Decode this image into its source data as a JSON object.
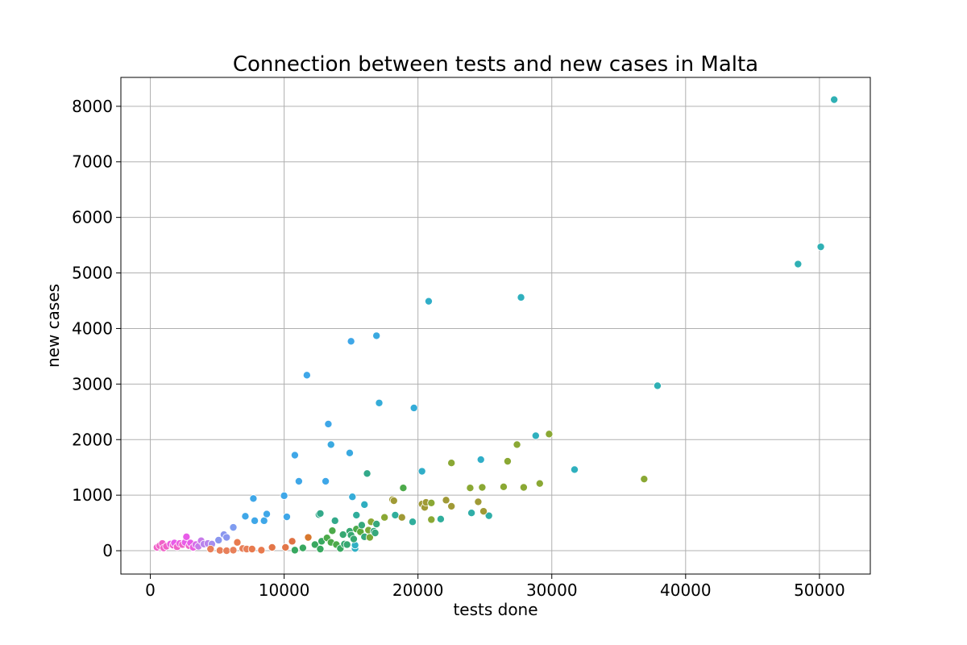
{
  "chart_data": {
    "type": "scatter",
    "title": "Connection between tests and new cases in Malta",
    "xlabel": "tests done",
    "ylabel": "new cases",
    "xlim": [
      -2200,
      53800
    ],
    "ylim": [
      -420,
      8520
    ],
    "xticks": [
      0,
      10000,
      20000,
      30000,
      40000,
      50000
    ],
    "yticks": [
      0,
      1000,
      2000,
      3000,
      4000,
      5000,
      6000,
      7000,
      8000
    ],
    "grid": true,
    "legend": "none",
    "points": [
      {
        "x": 500,
        "y": 60,
        "color": "#f062c8"
      },
      {
        "x": 700,
        "y": 90,
        "color": "#f062c8"
      },
      {
        "x": 900,
        "y": 130,
        "color": "#f062c8"
      },
      {
        "x": 1000,
        "y": 50,
        "color": "#f062c8"
      },
      {
        "x": 1200,
        "y": 80,
        "color": "#f062c8"
      },
      {
        "x": 1500,
        "y": 120,
        "color": "#ec5fe0"
      },
      {
        "x": 1700,
        "y": 100,
        "color": "#f062c8"
      },
      {
        "x": 1800,
        "y": 140,
        "color": "#e85ce8"
      },
      {
        "x": 2000,
        "y": 70,
        "color": "#f062c8"
      },
      {
        "x": 2200,
        "y": 130,
        "color": "#ec5fe0"
      },
      {
        "x": 2400,
        "y": 110,
        "color": "#f062c8"
      },
      {
        "x": 2600,
        "y": 150,
        "color": "#e85ce8"
      },
      {
        "x": 2700,
        "y": 250,
        "color": "#e85ce8"
      },
      {
        "x": 2900,
        "y": 90,
        "color": "#f062c8"
      },
      {
        "x": 3000,
        "y": 140,
        "color": "#e85ce8"
      },
      {
        "x": 3200,
        "y": 60,
        "color": "#ec5fe0"
      },
      {
        "x": 3400,
        "y": 110,
        "color": "#d66ee8"
      },
      {
        "x": 3600,
        "y": 80,
        "color": "#c87bea"
      },
      {
        "x": 3800,
        "y": 180,
        "color": "#c87bea"
      },
      {
        "x": 4000,
        "y": 120,
        "color": "#b884ec"
      },
      {
        "x": 4300,
        "y": 130,
        "color": "#b884ec"
      },
      {
        "x": 4600,
        "y": 120,
        "color": "#a68fee"
      },
      {
        "x": 4500,
        "y": 30,
        "color": "#e8805a"
      },
      {
        "x": 5100,
        "y": 190,
        "color": "#8a96ef"
      },
      {
        "x": 5500,
        "y": 290,
        "color": "#8a96ef"
      },
      {
        "x": 5700,
        "y": 240,
        "color": "#8a96ef"
      },
      {
        "x": 6200,
        "y": 420,
        "color": "#7f9cf0"
      },
      {
        "x": 5200,
        "y": 5,
        "color": "#e8805a"
      },
      {
        "x": 5700,
        "y": 0,
        "color": "#e8805a"
      },
      {
        "x": 6200,
        "y": 10,
        "color": "#e8805a"
      },
      {
        "x": 6500,
        "y": 150,
        "color": "#e87a4e"
      },
      {
        "x": 6900,
        "y": 40,
        "color": "#e8805a"
      },
      {
        "x": 7200,
        "y": 30,
        "color": "#e8805a"
      },
      {
        "x": 7600,
        "y": 30,
        "color": "#e87a4e"
      },
      {
        "x": 8300,
        "y": 10,
        "color": "#e87a4e"
      },
      {
        "x": 9100,
        "y": 60,
        "color": "#e37648"
      },
      {
        "x": 10100,
        "y": 60,
        "color": "#e37648"
      },
      {
        "x": 10600,
        "y": 170,
        "color": "#e07244"
      },
      {
        "x": 11800,
        "y": 240,
        "color": "#d8782e"
      },
      {
        "x": 7100,
        "y": 620,
        "color": "#3fa7e8"
      },
      {
        "x": 7700,
        "y": 940,
        "color": "#3fa7e8"
      },
      {
        "x": 7800,
        "y": 540,
        "color": "#3fa7e8"
      },
      {
        "x": 8500,
        "y": 540,
        "color": "#3fa7e8"
      },
      {
        "x": 8700,
        "y": 660,
        "color": "#3fa7e8"
      },
      {
        "x": 10000,
        "y": 990,
        "color": "#3fa7e8"
      },
      {
        "x": 10200,
        "y": 610,
        "color": "#3fa7e8"
      },
      {
        "x": 10800,
        "y": 1720,
        "color": "#3fa7e8"
      },
      {
        "x": 11100,
        "y": 1250,
        "color": "#3fa7e8"
      },
      {
        "x": 11700,
        "y": 3160,
        "color": "#3fa7e8"
      },
      {
        "x": 13100,
        "y": 1250,
        "color": "#3fa7e8"
      },
      {
        "x": 13300,
        "y": 2280,
        "color": "#3fa7e8"
      },
      {
        "x": 13500,
        "y": 1910,
        "color": "#3aa9e0"
      },
      {
        "x": 14900,
        "y": 1760,
        "color": "#3aa9e0"
      },
      {
        "x": 15000,
        "y": 3770,
        "color": "#3fa7e8"
      },
      {
        "x": 15100,
        "y": 970,
        "color": "#35acd8"
      },
      {
        "x": 16900,
        "y": 3870,
        "color": "#3aa9e0"
      },
      {
        "x": 17100,
        "y": 2660,
        "color": "#35acd8"
      },
      {
        "x": 19700,
        "y": 2570,
        "color": "#35acd8"
      },
      {
        "x": 20300,
        "y": 1430,
        "color": "#30aec8"
      },
      {
        "x": 20800,
        "y": 4490,
        "color": "#30aec8"
      },
      {
        "x": 24700,
        "y": 1640,
        "color": "#30aec8"
      },
      {
        "x": 27700,
        "y": 4560,
        "color": "#2fb0be"
      },
      {
        "x": 28800,
        "y": 2070,
        "color": "#2fb0be"
      },
      {
        "x": 31700,
        "y": 1460,
        "color": "#2fb0be"
      },
      {
        "x": 37900,
        "y": 2970,
        "color": "#2fb0b4"
      },
      {
        "x": 48400,
        "y": 5160,
        "color": "#2fb0b4"
      },
      {
        "x": 50100,
        "y": 5470,
        "color": "#2fb0b4"
      },
      {
        "x": 51100,
        "y": 8120,
        "color": "#2fb0b4"
      },
      {
        "x": 16000,
        "y": 830,
        "color": "#30aec0"
      },
      {
        "x": 18300,
        "y": 640,
        "color": "#30ae9c"
      },
      {
        "x": 19600,
        "y": 520,
        "color": "#30ae9c"
      },
      {
        "x": 21700,
        "y": 570,
        "color": "#30ae9c"
      },
      {
        "x": 24000,
        "y": 680,
        "color": "#30aea8"
      },
      {
        "x": 25300,
        "y": 630,
        "color": "#30aea8"
      },
      {
        "x": 15400,
        "y": 640,
        "color": "#30ae9c"
      },
      {
        "x": 15300,
        "y": 40,
        "color": "#30b0c4"
      },
      {
        "x": 15300,
        "y": 100,
        "color": "#30b0c4"
      },
      {
        "x": 13800,
        "y": 540,
        "color": "#33a98a"
      },
      {
        "x": 12600,
        "y": 650,
        "color": "#33a98a"
      },
      {
        "x": 12700,
        "y": 670,
        "color": "#33a98a"
      },
      {
        "x": 16200,
        "y": 1390,
        "color": "#33a98a"
      },
      {
        "x": 18900,
        "y": 1130,
        "color": "#4caa4a"
      },
      {
        "x": 10800,
        "y": 10,
        "color": "#38a860"
      },
      {
        "x": 11400,
        "y": 50,
        "color": "#38a860"
      },
      {
        "x": 12300,
        "y": 110,
        "color": "#38a860"
      },
      {
        "x": 12700,
        "y": 30,
        "color": "#38a860"
      },
      {
        "x": 12800,
        "y": 170,
        "color": "#38a860"
      },
      {
        "x": 13200,
        "y": 230,
        "color": "#4caa4a"
      },
      {
        "x": 13500,
        "y": 150,
        "color": "#4caa4a"
      },
      {
        "x": 13600,
        "y": 360,
        "color": "#4caa4a"
      },
      {
        "x": 13900,
        "y": 110,
        "color": "#4caa4a"
      },
      {
        "x": 14200,
        "y": 40,
        "color": "#38a860"
      },
      {
        "x": 14400,
        "y": 290,
        "color": "#36a872"
      },
      {
        "x": 14500,
        "y": 120,
        "color": "#36a872"
      },
      {
        "x": 14700,
        "y": 110,
        "color": "#36a872"
      },
      {
        "x": 14900,
        "y": 350,
        "color": "#36a872"
      },
      {
        "x": 15000,
        "y": 280,
        "color": "#36a872"
      },
      {
        "x": 15200,
        "y": 210,
        "color": "#36a872"
      },
      {
        "x": 15400,
        "y": 390,
        "color": "#4caa4a"
      },
      {
        "x": 15700,
        "y": 340,
        "color": "#5aaa3a"
      },
      {
        "x": 15800,
        "y": 460,
        "color": "#36a87c"
      },
      {
        "x": 16000,
        "y": 250,
        "color": "#36a87c"
      },
      {
        "x": 16300,
        "y": 370,
        "color": "#7aa836"
      },
      {
        "x": 16400,
        "y": 240,
        "color": "#7aa836"
      },
      {
        "x": 16500,
        "y": 520,
        "color": "#8aa834"
      },
      {
        "x": 16700,
        "y": 350,
        "color": "#36a87c"
      },
      {
        "x": 16800,
        "y": 320,
        "color": "#36a87c"
      },
      {
        "x": 16900,
        "y": 480,
        "color": "#36a87c"
      },
      {
        "x": 17500,
        "y": 600,
        "color": "#8aa834"
      },
      {
        "x": 18100,
        "y": 920,
        "color": "#a09a36"
      },
      {
        "x": 18200,
        "y": 900,
        "color": "#a09a36"
      },
      {
        "x": 18800,
        "y": 600,
        "color": "#a09a36"
      },
      {
        "x": 20300,
        "y": 840,
        "color": "#a09a36"
      },
      {
        "x": 20500,
        "y": 780,
        "color": "#a09a36"
      },
      {
        "x": 20600,
        "y": 870,
        "color": "#a09a36"
      },
      {
        "x": 21000,
        "y": 860,
        "color": "#8aa834"
      },
      {
        "x": 21000,
        "y": 560,
        "color": "#8aa834"
      },
      {
        "x": 22100,
        "y": 910,
        "color": "#a09a36"
      },
      {
        "x": 22500,
        "y": 1580,
        "color": "#8aa834"
      },
      {
        "x": 22500,
        "y": 800,
        "color": "#a09a36"
      },
      {
        "x": 23900,
        "y": 1130,
        "color": "#8aa834"
      },
      {
        "x": 24500,
        "y": 880,
        "color": "#a09a36"
      },
      {
        "x": 24800,
        "y": 1140,
        "color": "#8aa834"
      },
      {
        "x": 24900,
        "y": 710,
        "color": "#a09a36"
      },
      {
        "x": 26400,
        "y": 1150,
        "color": "#8aa834"
      },
      {
        "x": 26700,
        "y": 1610,
        "color": "#8aa834"
      },
      {
        "x": 27400,
        "y": 1910,
        "color": "#8aa834"
      },
      {
        "x": 27900,
        "y": 1140,
        "color": "#8aa834"
      },
      {
        "x": 29100,
        "y": 1210,
        "color": "#8aa834"
      },
      {
        "x": 29800,
        "y": 2100,
        "color": "#8aa834"
      },
      {
        "x": 36900,
        "y": 1290,
        "color": "#8aa834"
      }
    ]
  }
}
